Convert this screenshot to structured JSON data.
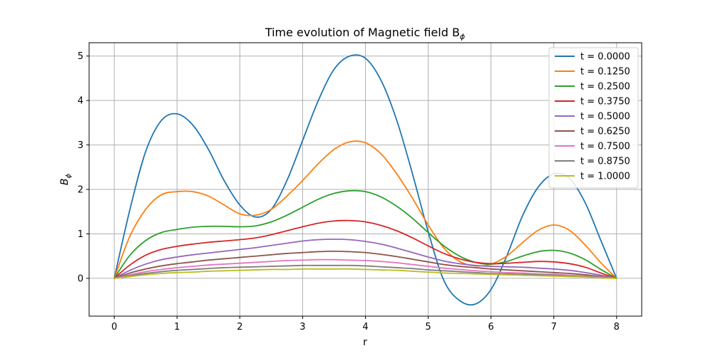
{
  "chart_data": {
    "type": "line",
    "title": "Time evolution of Magnetic field B",
    "title_subscript": "ϕ",
    "xlabel": "r",
    "ylabel": "B",
    "ylabel_subscript": "ϕ",
    "xlim": [
      -0.4,
      8.4
    ],
    "ylim": [
      -0.85,
      5.3
    ],
    "xticks": [
      0,
      1,
      2,
      3,
      4,
      5,
      6,
      7,
      8
    ],
    "yticks": [
      0,
      1,
      2,
      3,
      4,
      5
    ],
    "grid": true,
    "legend_position": "top-right",
    "x": [
      0,
      0.25,
      0.5,
      0.75,
      1.0,
      1.25,
      1.5,
      1.75,
      2.0,
      2.25,
      2.5,
      2.75,
      3.0,
      3.25,
      3.5,
      3.75,
      4.0,
      4.25,
      4.5,
      4.75,
      5.0,
      5.25,
      5.5,
      5.75,
      6.0,
      6.25,
      6.5,
      6.75,
      7.0,
      7.25,
      7.5,
      7.75,
      8.0
    ],
    "series": [
      {
        "name": "t = 0.0000",
        "color": "#1f77b4",
        "values": [
          0.0,
          1.55,
          2.85,
          3.55,
          3.7,
          3.45,
          2.9,
          2.2,
          1.65,
          1.38,
          1.55,
          2.2,
          3.1,
          4.0,
          4.7,
          5.0,
          4.95,
          4.45,
          3.55,
          2.35,
          1.05,
          -0.05,
          -0.5,
          -0.58,
          -0.25,
          0.5,
          1.4,
          2.05,
          2.35,
          2.25,
          1.7,
          0.85,
          0.0
        ]
      },
      {
        "name": "t = 0.1250",
        "color": "#ff7f0e",
        "values": [
          0.0,
          0.95,
          1.55,
          1.88,
          1.95,
          1.95,
          1.85,
          1.65,
          1.45,
          1.42,
          1.55,
          1.85,
          2.2,
          2.58,
          2.9,
          3.07,
          3.05,
          2.8,
          2.35,
          1.8,
          1.2,
          0.68,
          0.38,
          0.28,
          0.32,
          0.5,
          0.8,
          1.08,
          1.2,
          1.08,
          0.75,
          0.35,
          0.0
        ]
      },
      {
        "name": "t = 0.2500",
        "color": "#2ca02c",
        "values": [
          0.0,
          0.52,
          0.85,
          1.03,
          1.1,
          1.15,
          1.17,
          1.17,
          1.16,
          1.18,
          1.27,
          1.42,
          1.6,
          1.78,
          1.91,
          1.97,
          1.95,
          1.83,
          1.62,
          1.35,
          1.03,
          0.73,
          0.5,
          0.36,
          0.32,
          0.38,
          0.5,
          0.6,
          0.63,
          0.57,
          0.42,
          0.2,
          0.0
        ]
      },
      {
        "name": "t = 0.3750",
        "color": "#d62728",
        "values": [
          0.0,
          0.3,
          0.52,
          0.65,
          0.72,
          0.77,
          0.81,
          0.84,
          0.87,
          0.91,
          0.98,
          1.07,
          1.16,
          1.24,
          1.29,
          1.3,
          1.27,
          1.19,
          1.07,
          0.91,
          0.73,
          0.56,
          0.44,
          0.36,
          0.33,
          0.34,
          0.36,
          0.38,
          0.37,
          0.33,
          0.25,
          0.12,
          0.0
        ]
      },
      {
        "name": "t = 0.5000",
        "color": "#9467bd",
        "values": [
          0.0,
          0.18,
          0.32,
          0.42,
          0.48,
          0.53,
          0.57,
          0.61,
          0.65,
          0.69,
          0.74,
          0.79,
          0.84,
          0.87,
          0.88,
          0.87,
          0.83,
          0.77,
          0.68,
          0.58,
          0.48,
          0.39,
          0.33,
          0.29,
          0.27,
          0.26,
          0.25,
          0.23,
          0.21,
          0.18,
          0.13,
          0.07,
          0.0
        ]
      },
      {
        "name": "t = 0.6250",
        "color": "#8c564b",
        "values": [
          0.0,
          0.12,
          0.21,
          0.28,
          0.33,
          0.37,
          0.41,
          0.44,
          0.47,
          0.5,
          0.53,
          0.56,
          0.58,
          0.6,
          0.61,
          0.6,
          0.58,
          0.54,
          0.49,
          0.43,
          0.37,
          0.31,
          0.27,
          0.24,
          0.21,
          0.19,
          0.17,
          0.15,
          0.13,
          0.11,
          0.08,
          0.04,
          0.0
        ]
      },
      {
        "name": "t = 0.7500",
        "color": "#e377c2",
        "values": [
          0.0,
          0.08,
          0.15,
          0.2,
          0.24,
          0.27,
          0.3,
          0.32,
          0.34,
          0.36,
          0.38,
          0.4,
          0.41,
          0.42,
          0.42,
          0.41,
          0.4,
          0.38,
          0.35,
          0.31,
          0.27,
          0.23,
          0.2,
          0.17,
          0.15,
          0.13,
          0.12,
          0.1,
          0.09,
          0.07,
          0.05,
          0.03,
          0.0
        ]
      },
      {
        "name": "t = 0.8750",
        "color": "#7f7f7f",
        "values": [
          0.0,
          0.06,
          0.11,
          0.15,
          0.18,
          0.2,
          0.22,
          0.24,
          0.25,
          0.26,
          0.27,
          0.28,
          0.29,
          0.29,
          0.29,
          0.29,
          0.28,
          0.26,
          0.24,
          0.22,
          0.19,
          0.17,
          0.15,
          0.13,
          0.11,
          0.1,
          0.09,
          0.08,
          0.07,
          0.05,
          0.04,
          0.02,
          0.0
        ]
      },
      {
        "name": "t = 1.0000",
        "color": "#bcbd22",
        "values": [
          0.0,
          0.04,
          0.08,
          0.11,
          0.13,
          0.14,
          0.16,
          0.17,
          0.18,
          0.19,
          0.2,
          0.2,
          0.21,
          0.21,
          0.21,
          0.21,
          0.2,
          0.19,
          0.18,
          0.16,
          0.14,
          0.12,
          0.11,
          0.1,
          0.09,
          0.08,
          0.07,
          0.06,
          0.05,
          0.04,
          0.03,
          0.01,
          0.0
        ]
      }
    ]
  }
}
